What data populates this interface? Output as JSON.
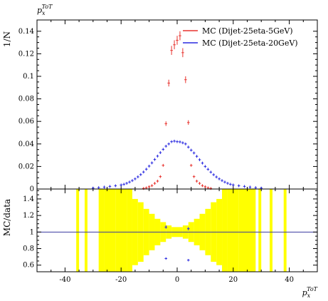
{
  "chart_data": [
    {
      "panel": "main",
      "type": "scatter",
      "title": "",
      "xlabel": "p_x^{ToT}",
      "ylabel": "1/N",
      "top_label": "p_x^{ToT}",
      "xlim": [
        -50,
        50
      ],
      "ylim": [
        0,
        0.15
      ],
      "yticks": [
        "0",
        "0.02",
        "0.04",
        "0.06",
        "0.08",
        "0.1",
        "0.12",
        "0.14"
      ],
      "legend_position": "top-right",
      "series": [
        {
          "name": "MC (Dijet-25eta-5GeV)",
          "color": "#e8332e",
          "x": [
            -5,
            -4,
            -3,
            -2,
            -1,
            0,
            1,
            2,
            3,
            4,
            5,
            -6,
            6,
            -7,
            7,
            -8,
            8,
            -9,
            9,
            -10,
            10,
            -11,
            11,
            -12,
            12
          ],
          "y": [
            0.021,
            0.058,
            0.094,
            0.123,
            0.128,
            0.132,
            0.136,
            0.121,
            0.097,
            0.059,
            0.021,
            0.011,
            0.011,
            0.007,
            0.007,
            0.005,
            0.005,
            0.003,
            0.003,
            0.002,
            0.002,
            0.001,
            0.001,
            0.0005,
            0.0005
          ],
          "err": [
            0.001,
            0.002,
            0.003,
            0.004,
            0.004,
            0.004,
            0.004,
            0.004,
            0.003,
            0.002,
            0.001,
            0.001,
            0.001,
            0.001,
            0.001,
            0.0005,
            0.0005,
            0.0005,
            0.0005,
            0.0005,
            0.0005,
            0.0005,
            0.0005,
            0.0005,
            0.0005
          ]
        },
        {
          "name": "MC (Dijet-25eta-20GeV)",
          "color": "#2a2ae0",
          "x": [
            -30,
            -28,
            -26,
            -24,
            -22,
            -20,
            -19,
            -18,
            -17,
            -16,
            -15,
            -14,
            -13,
            -12,
            -11,
            -10,
            -9,
            -8,
            -7,
            -6,
            -5,
            -4,
            -3,
            -2,
            -1,
            0,
            1,
            2,
            3,
            4,
            5,
            6,
            7,
            8,
            9,
            10,
            11,
            12,
            13,
            14,
            15,
            16,
            17,
            18,
            19,
            20,
            22,
            24,
            26,
            28,
            30
          ],
          "y": [
            0.0008,
            0.0012,
            0.0017,
            0.0023,
            0.0029,
            0.0036,
            0.0042,
            0.0051,
            0.0062,
            0.0075,
            0.009,
            0.0108,
            0.0128,
            0.0151,
            0.0176,
            0.0203,
            0.0232,
            0.0262,
            0.0292,
            0.0323,
            0.0352,
            0.038,
            0.04,
            0.042,
            0.0425,
            0.042,
            0.0418,
            0.041,
            0.04,
            0.0372,
            0.0345,
            0.032,
            0.029,
            0.026,
            0.023,
            0.02,
            0.0175,
            0.015,
            0.0127,
            0.0107,
            0.009,
            0.0075,
            0.0062,
            0.0051,
            0.0042,
            0.0036,
            0.0029,
            0.0023,
            0.0017,
            0.0012,
            0.0008
          ],
          "err": [
            0.0004,
            0.0004,
            0.0004,
            0.0005,
            0.0005,
            0.0005,
            0.0005,
            0.0005,
            0.0006,
            0.0006,
            0.0006,
            0.0007,
            0.0007,
            0.0007,
            0.0008,
            0.0008,
            0.0008,
            0.0009,
            0.0009,
            0.0009,
            0.001,
            0.001,
            0.001,
            0.001,
            0.001,
            0.001,
            0.001,
            0.001,
            0.001,
            0.001,
            0.001,
            0.0009,
            0.0009,
            0.0009,
            0.0008,
            0.0008,
            0.0008,
            0.0007,
            0.0007,
            0.0007,
            0.0006,
            0.0006,
            0.0006,
            0.0005,
            0.0005,
            0.0005,
            0.0005,
            0.0005,
            0.0004,
            0.0004,
            0.0004
          ]
        }
      ]
    },
    {
      "panel": "ratio",
      "type": "scatter",
      "ylabel": "MC/data",
      "xlabel": "p_x^{ToT}",
      "xlim": [
        -50,
        50
      ],
      "ylim": [
        0.52,
        1.52
      ],
      "yticks": [
        "0.6",
        "0.8",
        "1",
        "1.2",
        "1.4"
      ],
      "xticks": [
        "-40",
        "-20",
        "0",
        "20",
        "40"
      ],
      "reference_line": 1,
      "band_color": "#ffff00",
      "band": [
        {
          "x0": -36,
          "x1": -35,
          "lo": 0.52,
          "hi": 1.52
        },
        {
          "x0": -33,
          "x1": -32,
          "lo": 0.52,
          "hi": 1.52
        },
        {
          "x0": -28,
          "x1": -26,
          "lo": 0.52,
          "hi": 1.52
        },
        {
          "x0": -26,
          "x1": -25,
          "lo": 0.52,
          "hi": 1.52
        },
        {
          "x0": -25,
          "x1": -22,
          "lo": 0.52,
          "hi": 1.52
        },
        {
          "x0": -22,
          "x1": -18,
          "lo": 0.52,
          "hi": 1.52
        },
        {
          "x0": -18,
          "x1": -16,
          "lo": 0.52,
          "hi": 1.52
        },
        {
          "x0": -16,
          "x1": -14,
          "lo": 0.6,
          "hi": 1.4
        },
        {
          "x0": -14,
          "x1": -12,
          "lo": 0.64,
          "hi": 1.36
        },
        {
          "x0": -12,
          "x1": -10,
          "lo": 0.72,
          "hi": 1.28
        },
        {
          "x0": -10,
          "x1": -8,
          "lo": 0.78,
          "hi": 1.22
        },
        {
          "x0": -8,
          "x1": -6,
          "lo": 0.84,
          "hi": 1.16
        },
        {
          "x0": -6,
          "x1": -4,
          "lo": 0.88,
          "hi": 1.12
        },
        {
          "x0": -4,
          "x1": -2,
          "lo": 0.92,
          "hi": 1.08
        },
        {
          "x0": -2,
          "x1": 0,
          "lo": 0.94,
          "hi": 1.06
        },
        {
          "x0": 0,
          "x1": 2,
          "lo": 0.94,
          "hi": 1.06
        },
        {
          "x0": 2,
          "x1": 4,
          "lo": 0.92,
          "hi": 1.08
        },
        {
          "x0": 4,
          "x1": 6,
          "lo": 0.88,
          "hi": 1.12
        },
        {
          "x0": 6,
          "x1": 8,
          "lo": 0.84,
          "hi": 1.16
        },
        {
          "x0": 8,
          "x1": 10,
          "lo": 0.78,
          "hi": 1.22
        },
        {
          "x0": 10,
          "x1": 12,
          "lo": 0.72,
          "hi": 1.28
        },
        {
          "x0": 12,
          "x1": 14,
          "lo": 0.64,
          "hi": 1.36
        },
        {
          "x0": 14,
          "x1": 16,
          "lo": 0.6,
          "hi": 1.4
        },
        {
          "x0": 16,
          "x1": 18,
          "lo": 0.52,
          "hi": 1.52
        },
        {
          "x0": 18,
          "x1": 22,
          "lo": 0.52,
          "hi": 1.52
        },
        {
          "x0": 22,
          "x1": 25,
          "lo": 0.52,
          "hi": 1.52
        },
        {
          "x0": 25,
          "x1": 28,
          "lo": 0.52,
          "hi": 1.52
        },
        {
          "x0": 29,
          "x1": 30,
          "lo": 0.52,
          "hi": 1.52
        },
        {
          "x0": 33,
          "x1": 34,
          "lo": 0.52,
          "hi": 1.52
        },
        {
          "x0": 38,
          "x1": 39,
          "lo": 0.52,
          "hi": 1.52
        }
      ],
      "points": [
        {
          "series": "MC (Dijet-25eta-20GeV)",
          "x": -4,
          "y": 1.06,
          "err": 0.02
        },
        {
          "series": "MC (Dijet-25eta-20GeV)",
          "x": 4,
          "y": 1.04,
          "err": 0.02
        },
        {
          "series": "MC (Dijet-25eta-20GeV)",
          "x": -4,
          "y": 0.68,
          "err": 0.015
        },
        {
          "series": "MC (Dijet-25eta-20GeV)",
          "x": 4,
          "y": 0.66,
          "err": 0.015
        }
      ]
    }
  ]
}
